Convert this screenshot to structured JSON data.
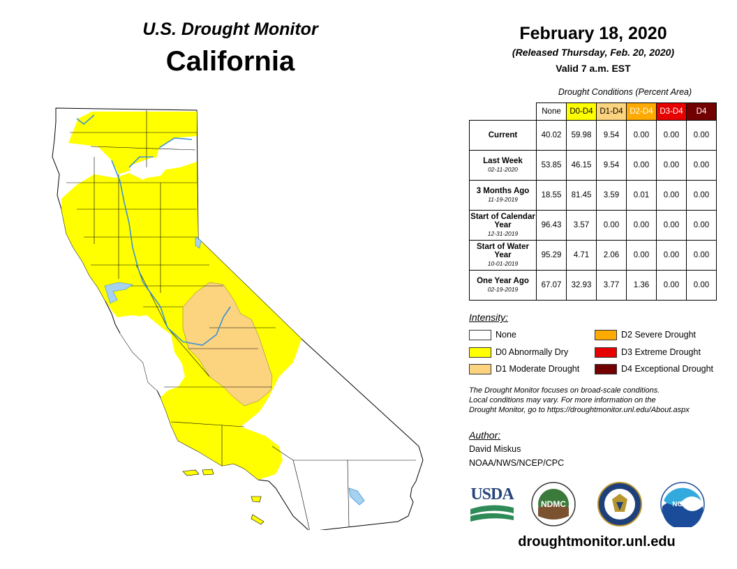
{
  "header": {
    "brand": "U.S. Drought Monitor",
    "state": "California",
    "date": "February 18, 2020",
    "released": "(Released Thursday, Feb. 20, 2020)",
    "valid": "Valid 7 a.m. EST"
  },
  "table": {
    "caption": "Drought Conditions (Percent Area)",
    "columns": [
      {
        "label": "None",
        "color": "#ffffff",
        "text_color": "#000000"
      },
      {
        "label": "D0-D4",
        "color": "#ffff00",
        "text_color": "#000000"
      },
      {
        "label": "D1-D4",
        "color": "#fcd37f",
        "text_color": "#000000"
      },
      {
        "label": "D2-D4",
        "color": "#ffaa00",
        "text_color": "#ffffff"
      },
      {
        "label": "D3-D4",
        "color": "#e60000",
        "text_color": "#ffffff"
      },
      {
        "label": "D4",
        "color": "#730000",
        "text_color": "#ffffff"
      }
    ],
    "rows": [
      {
        "label": "Current",
        "date": "",
        "values": [
          "40.02",
          "59.98",
          "9.54",
          "0.00",
          "0.00",
          "0.00"
        ]
      },
      {
        "label": "Last Week",
        "date": "02-11-2020",
        "values": [
          "53.85",
          "46.15",
          "9.54",
          "0.00",
          "0.00",
          "0.00"
        ]
      },
      {
        "label": "3 Months Ago",
        "date": "11-19-2019",
        "values": [
          "18.55",
          "81.45",
          "3.59",
          "0.01",
          "0.00",
          "0.00"
        ]
      },
      {
        "label": "Start of Calendar Year",
        "date": "12-31-2019",
        "values": [
          "96.43",
          "3.57",
          "0.00",
          "0.00",
          "0.00",
          "0.00"
        ]
      },
      {
        "label": "Start of Water Year",
        "date": "10-01-2019",
        "values": [
          "95.29",
          "4.71",
          "2.06",
          "0.00",
          "0.00",
          "0.00"
        ]
      },
      {
        "label": "One Year Ago",
        "date": "02-19-2019",
        "values": [
          "67.07",
          "32.93",
          "3.77",
          "1.36",
          "0.00",
          "0.00"
        ]
      }
    ]
  },
  "legend": {
    "title": "Intensity:",
    "items": [
      {
        "label": "None",
        "color": "#ffffff"
      },
      {
        "label": "D0 Abnormally Dry",
        "color": "#ffff00"
      },
      {
        "label": "D1 Moderate Drought",
        "color": "#fcd37f"
      },
      {
        "label": "D2 Severe Drought",
        "color": "#ffaa00"
      },
      {
        "label": "D3 Extreme Drought",
        "color": "#e60000"
      },
      {
        "label": "D4 Exceptional Drought",
        "color": "#730000"
      }
    ]
  },
  "note": {
    "line1": "The Drought Monitor focuses on broad-scale conditions.",
    "line2": "Local conditions may vary. For more information on the",
    "line3": "Drought Monitor, go to https://droughtmonitor.unl.edu/About.aspx"
  },
  "author": {
    "title": "Author:",
    "name": "David Miskus",
    "org": "NOAA/NWS/NCEP/CPC"
  },
  "logos": {
    "usda": "USDA",
    "ndmc": "NDMC",
    "commerce": "department-of-commerce-seal-icon",
    "noaa": "NOAA"
  },
  "footer": {
    "url": "droughtmonitor.unl.edu"
  },
  "map": {
    "colors": {
      "none": "#ffffff",
      "d0": "#ffff00",
      "d1": "#fcd37f",
      "water": "#a6d2f0",
      "river": "#3b8fd8"
    }
  }
}
